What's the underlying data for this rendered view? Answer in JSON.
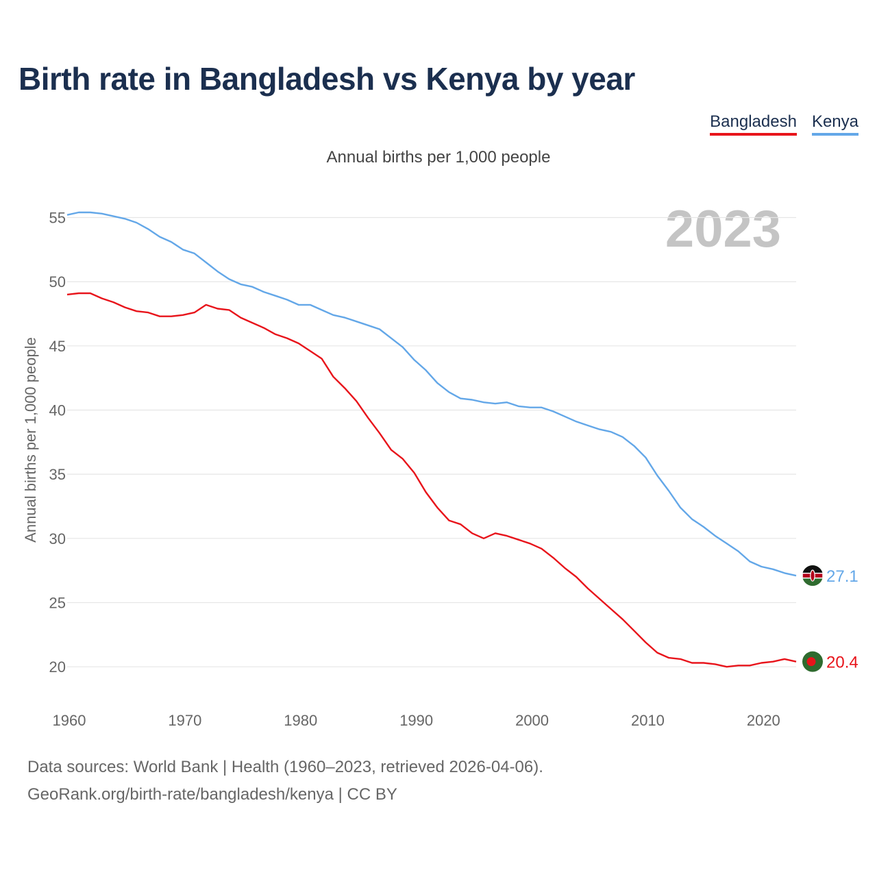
{
  "title": "Birth rate in Bangladesh vs Kenya by year",
  "legend": [
    "Bangladesh",
    "Kenya"
  ],
  "source_line1": "Data sources: World Bank | Health (1960–2023, retrieved 2026-04-06).",
  "source_line2": "GeoRank.org/birth-rate/bangladesh/kenya | CC BY",
  "colors": {
    "bangladesh": "#e8141b",
    "kenya": "#63a7e8",
    "grid": "#e6e6e6",
    "watermark": "#c4c4c4"
  },
  "chart_data": {
    "type": "line",
    "title": "Birth rate in Bangladesh vs Kenya by year",
    "subtitle": "Annual births per 1,000 people",
    "ylabel": "Annual births per 1,000 people",
    "xlabel": "",
    "year_watermark": "2023",
    "xlim": [
      1960,
      2023
    ],
    "ylim": [
      17.5,
      57
    ],
    "x_ticks": [
      1960,
      1970,
      1980,
      1990,
      2000,
      2010,
      2020
    ],
    "y_ticks": [
      20,
      25,
      30,
      35,
      40,
      45,
      50,
      55
    ],
    "grid": true,
    "x": [
      1960,
      1961,
      1962,
      1963,
      1964,
      1965,
      1966,
      1967,
      1968,
      1969,
      1970,
      1971,
      1972,
      1973,
      1974,
      1975,
      1976,
      1977,
      1978,
      1979,
      1980,
      1981,
      1982,
      1983,
      1984,
      1985,
      1986,
      1987,
      1988,
      1989,
      1990,
      1991,
      1992,
      1993,
      1994,
      1995,
      1996,
      1997,
      1998,
      1999,
      2000,
      2001,
      2002,
      2003,
      2004,
      2005,
      2006,
      2007,
      2008,
      2009,
      2010,
      2011,
      2012,
      2013,
      2014,
      2015,
      2016,
      2017,
      2018,
      2019,
      2020,
      2021,
      2022,
      2023
    ],
    "series": [
      {
        "name": "Bangladesh",
        "end_label": "20.4",
        "values": [
          49.0,
          49.1,
          49.1,
          48.7,
          48.4,
          48.0,
          47.7,
          47.6,
          47.3,
          47.3,
          47.4,
          47.6,
          48.2,
          47.9,
          47.8,
          47.2,
          46.8,
          46.4,
          45.9,
          45.6,
          45.2,
          44.6,
          44.0,
          42.6,
          41.7,
          40.7,
          39.4,
          38.2,
          36.9,
          36.2,
          35.1,
          33.6,
          32.4,
          31.4,
          31.1,
          30.4,
          30.0,
          30.4,
          30.2,
          29.9,
          29.6,
          29.2,
          28.5,
          27.7,
          27.0,
          26.1,
          25.3,
          24.5,
          23.7,
          22.8,
          21.9,
          21.1,
          20.7,
          20.6,
          20.3,
          20.3,
          20.2,
          20.0,
          20.1,
          20.1,
          20.3,
          20.4,
          20.6,
          20.4
        ]
      },
      {
        "name": "Kenya",
        "end_label": "27.1",
        "values": [
          55.2,
          55.4,
          55.4,
          55.3,
          55.1,
          54.9,
          54.6,
          54.1,
          53.5,
          53.1,
          52.5,
          52.2,
          51.5,
          50.8,
          50.2,
          49.8,
          49.6,
          49.2,
          48.9,
          48.6,
          48.2,
          48.2,
          47.8,
          47.4,
          47.2,
          46.9,
          46.6,
          46.3,
          45.6,
          44.9,
          43.9,
          43.1,
          42.1,
          41.4,
          40.9,
          40.8,
          40.6,
          40.5,
          40.6,
          40.3,
          40.2,
          40.2,
          39.9,
          39.5,
          39.1,
          38.8,
          38.5,
          38.3,
          37.9,
          37.2,
          36.3,
          34.9,
          33.7,
          32.4,
          31.5,
          30.9,
          30.2,
          29.6,
          29.0,
          28.2,
          27.8,
          27.6,
          27.3,
          27.1
        ]
      }
    ]
  }
}
